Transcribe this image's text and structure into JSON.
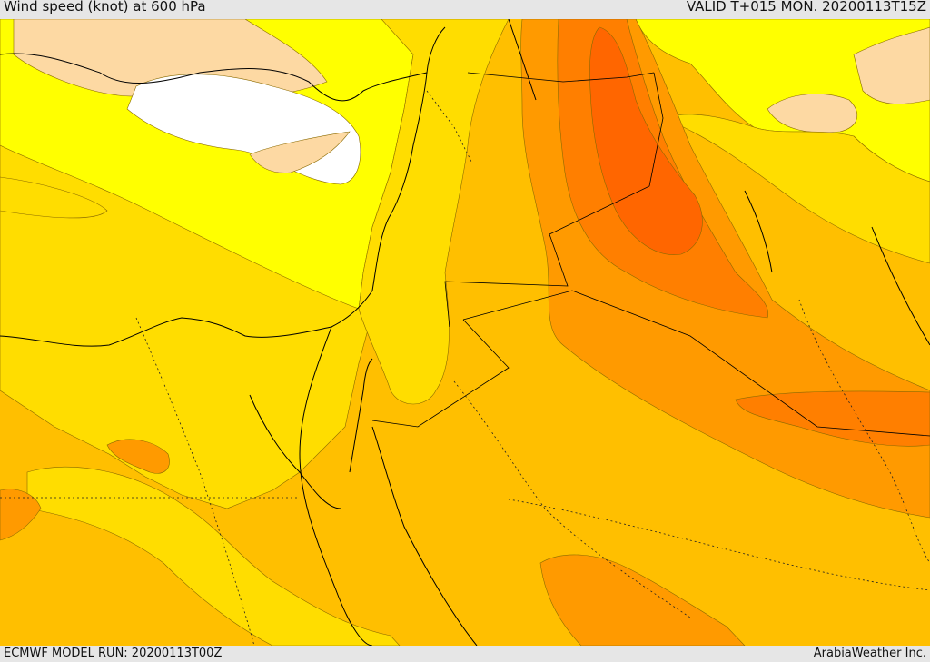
{
  "header": {
    "title": "Wind speed (knot) at 600 hPa",
    "valid": "VALID T+015 MON. 20200113T15Z"
  },
  "footer": {
    "model_run": "ECMWF MODEL RUN: 20200113T00Z",
    "credit": "ArabiaWeather Inc."
  },
  "palette": {
    "calm": "#ffffff",
    "light": "#fdd9a3",
    "yellow": "#ffff00",
    "gold": "#ffdd00",
    "amber": "#ffbf00",
    "orange": "#ff9a00",
    "deep_orange": "#ff7f00",
    "red_orange": "#ff6600"
  }
}
